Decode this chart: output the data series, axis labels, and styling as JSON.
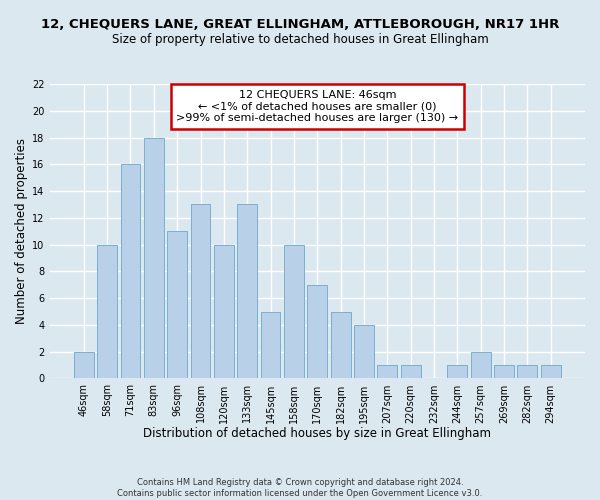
{
  "title": "12, CHEQUERS LANE, GREAT ELLINGHAM, ATTLEBOROUGH, NR17 1HR",
  "subtitle": "Size of property relative to detached houses in Great Ellingham",
  "xlabel": "Distribution of detached houses by size in Great Ellingham",
  "ylabel": "Number of detached properties",
  "bar_color": "#b8d0e8",
  "bar_edge_color": "#7aaed0",
  "categories": [
    "46sqm",
    "58sqm",
    "71sqm",
    "83sqm",
    "96sqm",
    "108sqm",
    "120sqm",
    "133sqm",
    "145sqm",
    "158sqm",
    "170sqm",
    "182sqm",
    "195sqm",
    "207sqm",
    "220sqm",
    "232sqm",
    "244sqm",
    "257sqm",
    "269sqm",
    "282sqm",
    "294sqm"
  ],
  "values": [
    2,
    10,
    16,
    18,
    11,
    13,
    10,
    13,
    5,
    10,
    7,
    5,
    4,
    1,
    1,
    0,
    1,
    2,
    1,
    1,
    1
  ],
  "ylim": [
    0,
    22
  ],
  "yticks": [
    0,
    2,
    4,
    6,
    8,
    10,
    12,
    14,
    16,
    18,
    20,
    22
  ],
  "annotation_lines": [
    "12 CHEQUERS LANE: 46sqm",
    "← <1% of detached houses are smaller (0)",
    ">99% of semi-detached houses are larger (130) →"
  ],
  "annotation_box_color": "#ffffff",
  "annotation_box_edge_color": "#cc0000",
  "footer_lines": [
    "Contains HM Land Registry data © Crown copyright and database right 2024.",
    "Contains public sector information licensed under the Open Government Licence v3.0."
  ],
  "background_color": "#dce8f0",
  "grid_color": "#ffffff",
  "title_fontsize": 9.5,
  "subtitle_fontsize": 8.5,
  "axis_label_fontsize": 8.5,
  "tick_fontsize": 7,
  "annotation_fontsize": 8,
  "footer_fontsize": 6
}
